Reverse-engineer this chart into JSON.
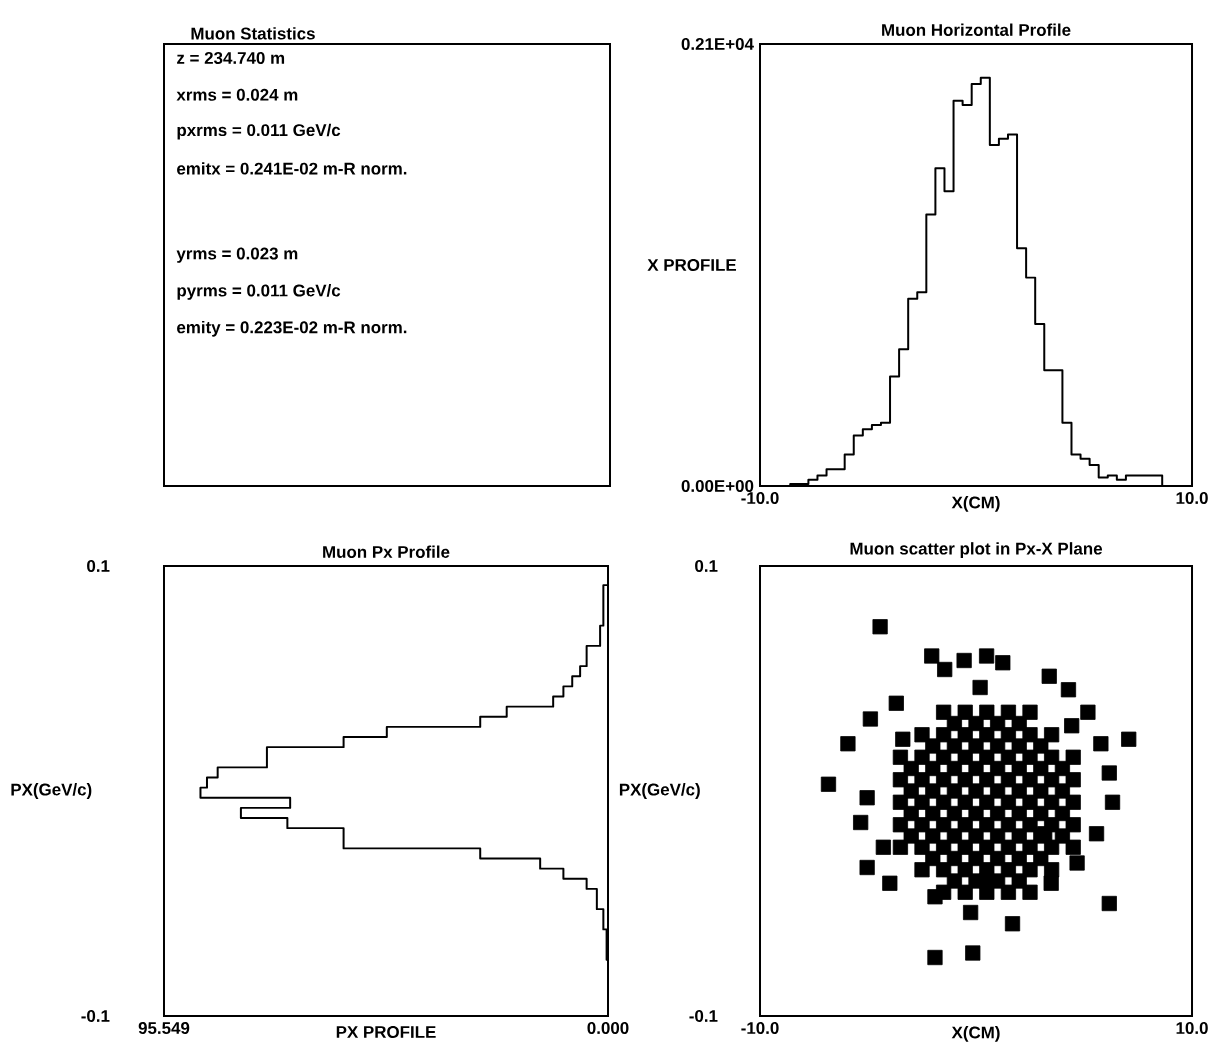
{
  "chart_data": [
    {
      "type": "other",
      "title": "Muon Statistics",
      "annotations": [
        "z =  234.740 m",
        "xrms =     0.024 m",
        "pxrms =     0.011 GeV/c",
        "emitx = 0.241E-02 m-R norm.",
        "yrms =     0.023 m",
        "pyrms =     0.011 GeV/c",
        "emity = 0.223E-02 m-R norm."
      ]
    },
    {
      "type": "histogram",
      "title": "Muon Horizontal Profile",
      "xlabel": "X(CM)",
      "ylabel": "X PROFILE",
      "color": "#000000",
      "bins": [
        -8.6,
        -8.18,
        -7.76,
        -7.34,
        -6.92,
        -6.5,
        -6.08,
        -5.66,
        -5.24,
        -4.82,
        -4.4,
        -3.98,
        -3.56,
        -3.14,
        -2.72,
        -2.3,
        -1.88,
        -1.46,
        -1.04,
        -0.62,
        -0.2,
        0.22,
        0.64,
        1.06,
        1.48,
        1.9,
        2.32,
        2.74,
        3.16,
        3.58,
        4.0,
        4.42,
        4.84,
        5.26,
        5.68,
        6.1,
        6.52,
        6.94,
        7.36,
        7.78,
        8.2,
        8.62
      ],
      "values": [
        10,
        10,
        30,
        50,
        80,
        80,
        150,
        240,
        270,
        290,
        300,
        520,
        650,
        890,
        920,
        1290,
        1510,
        1400,
        1830,
        1810,
        1910,
        1940,
        1620,
        1650,
        1670,
        1130,
        990,
        770,
        550,
        550,
        300,
        150,
        130,
        100,
        40,
        50,
        30,
        50,
        50,
        50,
        50
      ],
      "xlim": [
        -10,
        10
      ],
      "xticks": [
        {
          "value": -10,
          "label": "-10.0"
        },
        {
          "value": 10,
          "label": "10.0"
        }
      ],
      "ylim": [
        0,
        2100
      ],
      "yticks": [
        {
          "value": 0,
          "label": "0.00E+00"
        },
        {
          "value": 2100,
          "label": "0.21E+04"
        }
      ]
    },
    {
      "type": "histogram",
      "orientation": "horizontal",
      "title": "Muon Px Profile",
      "xlabel": "PX PROFILE",
      "ylabel": "PX(GeV/c)",
      "color": "#000000",
      "bins": [
        -0.075,
        -0.0705,
        -0.066,
        -0.0615,
        -0.057,
        -0.0525,
        -0.048,
        -0.0435,
        -0.039,
        -0.0345,
        -0.03,
        -0.0255,
        -0.021,
        -0.0165,
        -0.012,
        -0.0075,
        -0.003,
        0.0015,
        0.006,
        0.0105,
        0.015,
        0.0195,
        0.024,
        0.0285,
        0.033,
        0.0375,
        0.042,
        0.0465,
        0.051,
        0.0555,
        0.06,
        0.0645,
        0.069,
        0.0735,
        0.078,
        0.0825,
        0.087,
        0.0915
      ],
      "values": [
        0.3,
        0.3,
        0.3,
        1,
        1,
        2.4,
        2.4,
        4.6,
        9.6,
        14.6,
        27.5,
        56.9,
        56.9,
        69,
        79,
        68.4,
        87.7,
        86.3,
        84,
        73.4,
        73.4,
        56.9,
        47.6,
        27.5,
        21.8,
        11.8,
        9.6,
        7.7,
        6,
        4.6,
        4.6,
        1.7,
        1.7,
        1,
        1,
        1,
        1
      ],
      "xlim": [
        95.549,
        0
      ],
      "xticks": [
        {
          "value": 95.549,
          "label": "95.549"
        },
        {
          "value": 0,
          "label": "0.000"
        }
      ],
      "ylim": [
        -0.1,
        0.1
      ],
      "yticks": [
        {
          "value": -0.1,
          "label": "-0.1"
        },
        {
          "value": 0.1,
          "label": "0.1"
        }
      ]
    },
    {
      "type": "scatter",
      "title": "Muon scatter plot in Px-X Plane",
      "xlabel": "X(CM)",
      "ylabel": "PX(GeV/c)",
      "color": "#000000",
      "marker": "square",
      "x": [
        -1.5,
        -0.5,
        0.5,
        1.5,
        2.5,
        -2.5,
        -1.5,
        -0.5,
        0.5,
        1.5,
        2.5,
        3.5,
        -3.5,
        -2.5,
        -1.5,
        -0.5,
        0.5,
        1.5,
        2.5,
        3.5,
        4.5,
        -3.5,
        -2.5,
        -1.5,
        -0.5,
        0.5,
        1.5,
        2.5,
        3.5,
        4.5,
        -3.5,
        -2.5,
        -1.5,
        -0.5,
        0.5,
        1.5,
        2.5,
        3.5,
        4.5,
        -3.5,
        -2.5,
        -1.5,
        -0.5,
        0.5,
        1.5,
        2.5,
        3.5,
        4.5,
        -3.5,
        -2.5,
        -1.5,
        -0.5,
        0.5,
        1.5,
        2.5,
        3.5,
        4.5,
        -2.5,
        -1.5,
        -0.5,
        0.5,
        1.5,
        2.5,
        3.5,
        -1.5,
        -0.5,
        0.5,
        1.5,
        2.5,
        -4.44,
        -2.05,
        -0.55,
        0.49,
        1.24,
        0.19,
        -1.45,
        -3.69,
        -4.89,
        -5.93,
        -6.83,
        -5.04,
        -5.34,
        -5.04,
        -3.99,
        -1.9,
        -0.25,
        1.69,
        -0.15,
        -1.9,
        3.48,
        4.68,
        5.58,
        6.32,
        6.17,
        7.07,
        5.78,
        5.18,
        4.28,
        3.39,
        6.17,
        4.43,
        -3.39,
        -4.29,
        0.49,
        3.18,
        -1,
        0,
        1,
        2,
        -2,
        -1,
        0,
        1,
        2,
        3,
        -3,
        -2,
        -1,
        0,
        1,
        2,
        3,
        4,
        -3,
        -2,
        -1,
        0,
        1,
        2,
        3,
        4,
        -3,
        -2,
        -1,
        0,
        1,
        2,
        3,
        4,
        -3,
        -2,
        -1,
        0,
        1,
        2,
        3,
        4,
        -2,
        -1,
        0,
        1,
        2,
        3,
        -1,
        0,
        1,
        2
      ],
      "values": [
        -0.045,
        -0.045,
        -0.045,
        -0.045,
        -0.045,
        -0.035,
        -0.035,
        -0.035,
        -0.035,
        -0.035,
        -0.035,
        -0.035,
        -0.025,
        -0.025,
        -0.025,
        -0.025,
        -0.025,
        -0.025,
        -0.025,
        -0.025,
        -0.025,
        -0.015,
        -0.015,
        -0.015,
        -0.015,
        -0.015,
        -0.015,
        -0.015,
        -0.015,
        -0.015,
        -0.005,
        -0.005,
        -0.005,
        -0.005,
        -0.005,
        -0.005,
        -0.005,
        -0.005,
        -0.005,
        0.005,
        0.005,
        0.005,
        0.005,
        0.005,
        0.005,
        0.005,
        0.005,
        0.005,
        0.015,
        0.015,
        0.015,
        0.015,
        0.015,
        0.015,
        0.015,
        0.015,
        0.015,
        0.025,
        0.025,
        0.025,
        0.025,
        0.025,
        0.025,
        0.025,
        0.035,
        0.035,
        0.035,
        0.035,
        0.035,
        0.073,
        0.06,
        0.058,
        0.06,
        0.057,
        0.046,
        0.054,
        0.039,
        0.032,
        0.021,
        0.003,
        -0.003,
        -0.014,
        -0.034,
        -0.041,
        -0.047,
        -0.054,
        -0.059,
        -0.072,
        -0.074,
        -0.041,
        -0.032,
        -0.019,
        -0.005,
        0.008,
        0.023,
        0.021,
        0.035,
        0.045,
        0.051,
        -0.05,
        0.029,
        0.023,
        -0.025,
        -0.04,
        -0.019,
        -0.04,
        -0.04,
        -0.04,
        -0.04,
        -0.03,
        -0.03,
        -0.03,
        -0.03,
        -0.03,
        -0.03,
        -0.02,
        -0.02,
        -0.02,
        -0.02,
        -0.02,
        -0.02,
        -0.02,
        -0.02,
        -0.01,
        -0.01,
        -0.01,
        -0.01,
        -0.01,
        -0.01,
        -0.01,
        -0.01,
        0,
        0,
        0,
        0,
        0,
        0,
        0,
        0,
        0.01,
        0.01,
        0.01,
        0.01,
        0.01,
        0.01,
        0.01,
        0.01,
        0.02,
        0.02,
        0.02,
        0.02,
        0.02,
        0.02,
        0.03,
        0.03,
        0.03,
        0.03
      ],
      "xlim": [
        -10,
        10
      ],
      "xticks": [
        {
          "value": -10,
          "label": "-10.0"
        },
        {
          "value": 10,
          "label": "10.0"
        }
      ],
      "ylim": [
        -0.1,
        0.1
      ],
      "yticks": [
        {
          "value": -0.1,
          "label": "-0.1"
        },
        {
          "value": 0.1,
          "label": "0.1"
        }
      ]
    }
  ]
}
